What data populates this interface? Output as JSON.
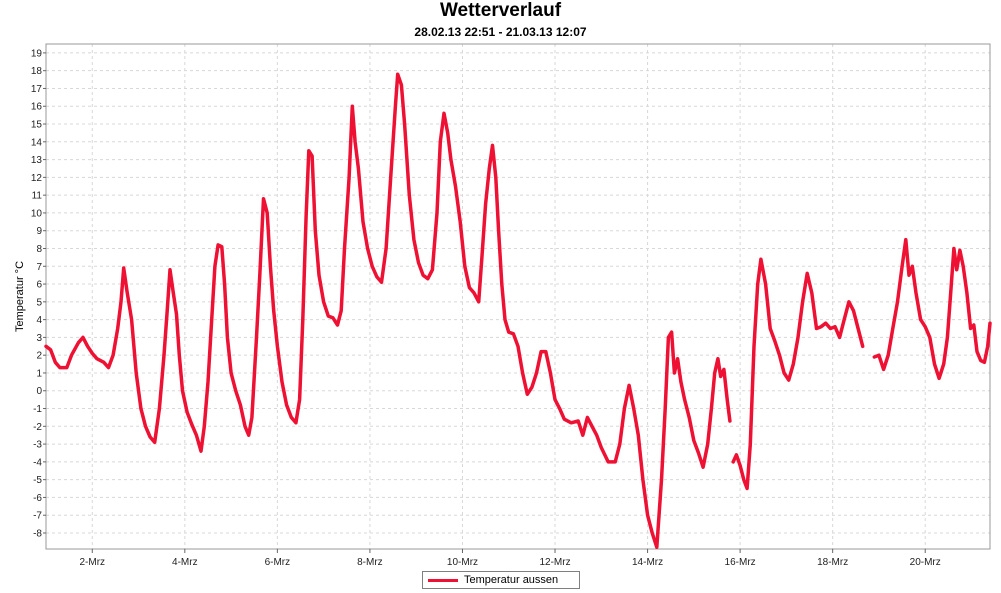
{
  "chart_data": {
    "type": "line",
    "title": "Wetterverlauf",
    "subtitle": "28.02.13 22:51 - 21.03.13 12:07",
    "ylabel": "Temperatur °C",
    "xlabel": "",
    "ylim": [
      -8.9,
      19.5
    ],
    "xlim": [
      1.0,
      21.4
    ],
    "yticks": [
      -8,
      -7,
      -6,
      -5,
      -4,
      -3,
      -2,
      -1,
      0,
      1,
      2,
      3,
      4,
      5,
      6,
      7,
      8,
      9,
      10,
      11,
      12,
      13,
      14,
      15,
      16,
      17,
      18,
      19
    ],
    "xticks": [
      {
        "x": 2,
        "label": "2-Mrz"
      },
      {
        "x": 4,
        "label": "4-Mrz"
      },
      {
        "x": 6,
        "label": "6-Mrz"
      },
      {
        "x": 8,
        "label": "8-Mrz"
      },
      {
        "x": 10,
        "label": "10-Mrz"
      },
      {
        "x": 12,
        "label": "12-Mrz"
      },
      {
        "x": 14,
        "label": "14-Mrz"
      },
      {
        "x": 16,
        "label": "16-Mrz"
      },
      {
        "x": 18,
        "label": "18-Mrz"
      },
      {
        "x": 20,
        "label": "20-Mrz"
      }
    ],
    "grid": true,
    "legend_position": "bottom-center",
    "series": [
      {
        "name": "Temperatur aussen",
        "color": "#ee1133",
        "segments": [
          [
            [
              1.0,
              2.5
            ],
            [
              1.1,
              2.3
            ],
            [
              1.2,
              1.6
            ],
            [
              1.3,
              1.3
            ],
            [
              1.45,
              1.3
            ],
            [
              1.55,
              2.0
            ],
            [
              1.7,
              2.7
            ],
            [
              1.8,
              3.0
            ],
            [
              1.9,
              2.5
            ],
            [
              2.0,
              2.1
            ],
            [
              2.1,
              1.8
            ],
            [
              2.25,
              1.6
            ],
            [
              2.35,
              1.3
            ],
            [
              2.45,
              2.0
            ],
            [
              2.55,
              3.5
            ],
            [
              2.62,
              5.0
            ],
            [
              2.68,
              6.9
            ],
            [
              2.75,
              5.6
            ],
            [
              2.85,
              4.0
            ],
            [
              2.95,
              1.0
            ],
            [
              3.05,
              -1.0
            ],
            [
              3.15,
              -2.0
            ],
            [
              3.25,
              -2.6
            ],
            [
              3.35,
              -2.9
            ],
            [
              3.45,
              -1.0
            ],
            [
              3.55,
              2.0
            ],
            [
              3.62,
              4.5
            ],
            [
              3.68,
              6.8
            ],
            [
              3.75,
              5.5
            ],
            [
              3.82,
              4.3
            ],
            [
              3.88,
              2.0
            ],
            [
              3.95,
              0.0
            ],
            [
              4.05,
              -1.2
            ],
            [
              4.15,
              -1.9
            ],
            [
              4.25,
              -2.5
            ],
            [
              4.35,
              -3.4
            ],
            [
              4.42,
              -2.0
            ],
            [
              4.5,
              0.5
            ],
            [
              4.58,
              4.0
            ],
            [
              4.65,
              7.0
            ],
            [
              4.72,
              8.2
            ],
            [
              4.8,
              8.1
            ],
            [
              4.86,
              6.0
            ],
            [
              4.92,
              3.0
            ],
            [
              5.0,
              1.0
            ],
            [
              5.1,
              0.0
            ],
            [
              5.2,
              -0.8
            ],
            [
              5.3,
              -2.0
            ],
            [
              5.38,
              -2.5
            ],
            [
              5.45,
              -1.5
            ],
            [
              5.55,
              3.0
            ],
            [
              5.62,
              6.5
            ],
            [
              5.7,
              10.8
            ],
            [
              5.78,
              10.0
            ],
            [
              5.85,
              7.0
            ],
            [
              5.92,
              4.5
            ],
            [
              6.0,
              2.5
            ],
            [
              6.1,
              0.5
            ],
            [
              6.2,
              -0.8
            ],
            [
              6.3,
              -1.5
            ],
            [
              6.4,
              -1.8
            ],
            [
              6.48,
              -0.5
            ],
            [
              6.55,
              4.0
            ],
            [
              6.62,
              9.8
            ],
            [
              6.68,
              13.5
            ],
            [
              6.75,
              13.2
            ],
            [
              6.82,
              9.0
            ],
            [
              6.9,
              6.5
            ],
            [
              7.0,
              5.0
            ],
            [
              7.1,
              4.2
            ],
            [
              7.2,
              4.1
            ],
            [
              7.3,
              3.7
            ],
            [
              7.38,
              4.5
            ],
            [
              7.45,
              8.0
            ],
            [
              7.55,
              12.0
            ],
            [
              7.62,
              16.0
            ],
            [
              7.68,
              14.0
            ],
            [
              7.75,
              12.5
            ],
            [
              7.85,
              9.5
            ],
            [
              7.95,
              8.0
            ],
            [
              8.05,
              7.0
            ],
            [
              8.15,
              6.4
            ],
            [
              8.25,
              6.1
            ],
            [
              8.35,
              8.0
            ],
            [
              8.45,
              12.0
            ],
            [
              8.55,
              16.0
            ],
            [
              8.6,
              17.8
            ],
            [
              8.68,
              17.2
            ],
            [
              8.75,
              15.0
            ],
            [
              8.85,
              11.0
            ],
            [
              8.95,
              8.5
            ],
            [
              9.05,
              7.2
            ],
            [
              9.15,
              6.5
            ],
            [
              9.25,
              6.3
            ],
            [
              9.35,
              6.8
            ],
            [
              9.45,
              10.0
            ],
            [
              9.52,
              14.0
            ],
            [
              9.6,
              15.6
            ],
            [
              9.68,
              14.5
            ],
            [
              9.75,
              13.0
            ],
            [
              9.85,
              11.5
            ],
            [
              9.95,
              9.5
            ],
            [
              10.05,
              7.0
            ],
            [
              10.15,
              5.8
            ],
            [
              10.25,
              5.5
            ],
            [
              10.35,
              5.0
            ],
            [
              10.42,
              7.5
            ],
            [
              10.5,
              10.5
            ],
            [
              10.58,
              12.5
            ],
            [
              10.65,
              13.8
            ],
            [
              10.72,
              12.0
            ],
            [
              10.78,
              9.0
            ],
            [
              10.85,
              6.0
            ],
            [
              10.92,
              4.0
            ],
            [
              11.0,
              3.3
            ],
            [
              11.1,
              3.2
            ],
            [
              11.2,
              2.5
            ],
            [
              11.3,
              1.0
            ],
            [
              11.4,
              -0.2
            ],
            [
              11.5,
              0.2
            ],
            [
              11.6,
              1.0
            ],
            [
              11.7,
              2.2
            ],
            [
              11.8,
              2.2
            ],
            [
              11.9,
              1.0
            ],
            [
              12.0,
              -0.5
            ],
            [
              12.1,
              -1.0
            ],
            [
              12.2,
              -1.6
            ],
            [
              12.35,
              -1.8
            ],
            [
              12.5,
              -1.7
            ],
            [
              12.6,
              -2.5
            ],
            [
              12.7,
              -1.5
            ],
            [
              12.8,
              -2.0
            ],
            [
              12.9,
              -2.5
            ],
            [
              13.0,
              -3.2
            ],
            [
              13.15,
              -4.0
            ],
            [
              13.3,
              -4.0
            ],
            [
              13.4,
              -3.0
            ],
            [
              13.5,
              -1.0
            ],
            [
              13.6,
              0.3
            ],
            [
              13.7,
              -1.0
            ],
            [
              13.8,
              -2.5
            ],
            [
              13.9,
              -5.0
            ],
            [
              14.0,
              -7.0
            ],
            [
              14.1,
              -8.0
            ],
            [
              14.2,
              -8.8
            ],
            [
              14.3,
              -5.0
            ],
            [
              14.38,
              -1.0
            ],
            [
              14.45,
              3.0
            ],
            [
              14.52,
              3.3
            ],
            [
              14.58,
              1.0
            ],
            [
              14.65,
              1.8
            ],
            [
              14.72,
              0.5
            ],
            [
              14.8,
              -0.5
            ],
            [
              14.9,
              -1.5
            ],
            [
              15.0,
              -2.8
            ],
            [
              15.1,
              -3.5
            ],
            [
              15.2,
              -4.3
            ],
            [
              15.3,
              -3.0
            ],
            [
              15.38,
              -1.0
            ],
            [
              15.45,
              1.0
            ],
            [
              15.52,
              1.8
            ],
            [
              15.58,
              0.8
            ],
            [
              15.65,
              1.2
            ],
            [
              15.72,
              -0.5
            ],
            [
              15.78,
              -1.7
            ]
          ],
          [
            [
              15.85,
              -4.0
            ],
            [
              15.92,
              -3.6
            ],
            [
              16.0,
              -4.2
            ],
            [
              16.08,
              -5.0
            ],
            [
              16.15,
              -5.5
            ],
            [
              16.22,
              -3.0
            ],
            [
              16.3,
              2.5
            ],
            [
              16.38,
              6.0
            ],
            [
              16.45,
              7.4
            ],
            [
              16.55,
              6.0
            ],
            [
              16.65,
              3.5
            ],
            [
              16.75,
              2.8
            ],
            [
              16.85,
              2.0
            ],
            [
              16.95,
              1.0
            ],
            [
              17.05,
              0.6
            ],
            [
              17.15,
              1.5
            ],
            [
              17.25,
              3.0
            ],
            [
              17.35,
              5.0
            ],
            [
              17.45,
              6.6
            ],
            [
              17.55,
              5.5
            ],
            [
              17.65,
              3.5
            ],
            [
              17.75,
              3.6
            ],
            [
              17.85,
              3.8
            ],
            [
              17.95,
              3.5
            ],
            [
              18.05,
              3.6
            ],
            [
              18.15,
              3.0
            ],
            [
              18.25,
              4.0
            ],
            [
              18.35,
              5.0
            ],
            [
              18.45,
              4.5
            ],
            [
              18.55,
              3.5
            ],
            [
              18.65,
              2.5
            ]
          ],
          [
            [
              18.9,
              1.9
            ],
            [
              19.0,
              2.0
            ],
            [
              19.1,
              1.2
            ],
            [
              19.2,
              2.0
            ],
            [
              19.3,
              3.5
            ],
            [
              19.4,
              5.0
            ],
            [
              19.5,
              7.0
            ],
            [
              19.58,
              8.5
            ],
            [
              19.65,
              6.5
            ],
            [
              19.72,
              7.0
            ],
            [
              19.8,
              5.5
            ],
            [
              19.9,
              4.0
            ],
            [
              20.0,
              3.6
            ],
            [
              20.1,
              3.0
            ],
            [
              20.2,
              1.5
            ],
            [
              20.3,
              0.7
            ],
            [
              20.4,
              1.5
            ],
            [
              20.48,
              3.0
            ],
            [
              20.55,
              5.5
            ],
            [
              20.62,
              8.0
            ],
            [
              20.68,
              6.8
            ],
            [
              20.75,
              7.9
            ],
            [
              20.82,
              7.0
            ],
            [
              20.9,
              5.5
            ],
            [
              20.98,
              3.5
            ],
            [
              21.05,
              3.7
            ],
            [
              21.12,
              2.2
            ],
            [
              21.2,
              1.7
            ],
            [
              21.28,
              1.6
            ],
            [
              21.35,
              2.5
            ],
            [
              21.4,
              3.8
            ]
          ]
        ]
      }
    ]
  }
}
